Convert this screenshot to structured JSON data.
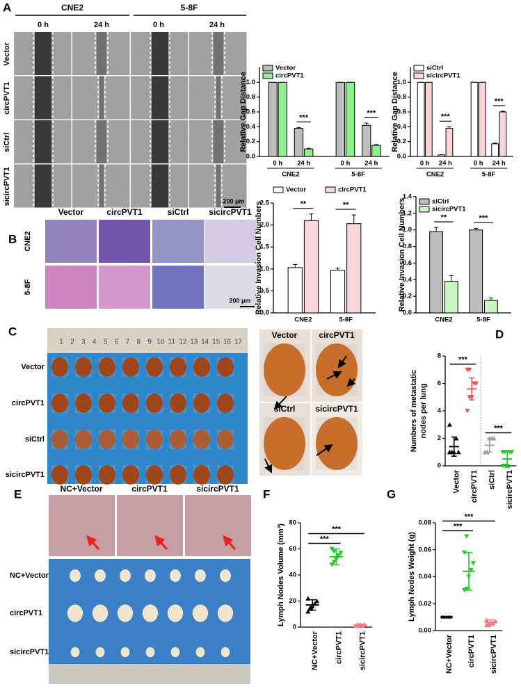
{
  "figure": {
    "panel_labels": [
      "A",
      "B",
      "C",
      "D",
      "E",
      "F",
      "G"
    ],
    "A": {
      "cell_lines": [
        "CNE2",
        "5-8F"
      ],
      "times": [
        "0 h",
        "24 h",
        "0 h",
        "24 h"
      ],
      "rows": [
        "Vector",
        "circPVT1",
        "siCtrl",
        "sicircPVT1"
      ],
      "scale": "200 μm"
    },
    "B": {
      "columns": [
        "Vector",
        "circPVT1",
        "siCtrl",
        "sicircPVT1"
      ],
      "rows": [
        "CNE2",
        "5-8F"
      ],
      "scale": "200 μm"
    },
    "C": {
      "ruler": [
        1,
        2,
        3,
        4,
        5,
        6,
        7,
        8,
        9,
        10,
        11,
        12,
        13,
        14,
        15,
        16,
        17
      ],
      "rows": [
        "Vector",
        "circPVT1",
        "siCtrl",
        "sicircPVT1"
      ],
      "zoom_labels": [
        "Vector",
        "circPVT1",
        "siCtrl",
        "sicircPVT1"
      ]
    },
    "E": {
      "columns": [
        "NC+Vector",
        "circPVT1",
        "sicircPVT1"
      ],
      "rows": [
        "NC+Vector",
        "circPVT1",
        "sicircPVT1"
      ]
    }
  },
  "chart_data": [
    {
      "type": "bar",
      "ylabel": "Relative Gap Distance",
      "groups": [
        "CNE2",
        "5-8F"
      ],
      "categories": [
        "0 h",
        "24 h",
        "0 h",
        "24 h"
      ],
      "series": [
        {
          "name": "Vector",
          "color": "#bdbdbd",
          "values": [
            1,
            0.38,
            1,
            0.42
          ],
          "errors": [
            0,
            0.01,
            0,
            0.03
          ]
        },
        {
          "name": "circPVT1",
          "color": "#90ee90",
          "values": [
            1,
            0.1,
            1,
            0.15
          ],
          "errors": [
            0,
            0.01,
            0,
            0.01
          ]
        }
      ],
      "sig": [
        null,
        "***",
        null,
        "***"
      ],
      "legend": "top-left",
      "ylim": [
        0,
        1.2
      ],
      "yticks": [
        {
          "value": 0,
          "label": "0.0"
        },
        0.2,
        0.4,
        0.6,
        0.8,
        {
          "value": 1,
          "label": "1.0"
        }
      ]
    },
    {
      "type": "bar",
      "ylabel": "Relative Gap Distance",
      "groups": [
        "CNE2",
        "5-8F"
      ],
      "categories": [
        "0 h",
        "24 h",
        "0 h",
        "24 h"
      ],
      "series": [
        {
          "name": "siCtrl",
          "color": "#ffffff",
          "values": [
            1,
            0.02,
            1,
            0.17
          ],
          "errors": [
            0,
            0.005,
            0,
            0.01
          ]
        },
        {
          "name": "sicircPVT1",
          "color": "#f9d5d8",
          "values": [
            1,
            0.38,
            1,
            0.6
          ],
          "errors": [
            0,
            0.02,
            0,
            0.01
          ]
        }
      ],
      "sig": [
        null,
        "***",
        null,
        "***"
      ],
      "legend": "top-left",
      "ylim": [
        0,
        1.2
      ],
      "yticks": [
        {
          "value": 0,
          "label": "0.0"
        },
        0.2,
        0.4,
        0.6,
        0.8,
        {
          "value": 1,
          "label": "1.0"
        }
      ]
    },
    {
      "type": "bar",
      "ylabel": "Relative Invasion Cell Numbers",
      "categories": [
        "CNE2",
        "5-8F"
      ],
      "series": [
        {
          "name": "Vector",
          "color": "#ffffff",
          "values": [
            1.03,
            0.97
          ],
          "errors": [
            0.07,
            0.05
          ]
        },
        {
          "name": "circPVT1",
          "color": "#f9d5d8",
          "values": [
            2.1,
            2.03
          ],
          "errors": [
            0.15,
            0.2
          ]
        }
      ],
      "sig": [
        "**",
        "**"
      ],
      "legend": "top",
      "ylim": [
        0,
        2.5
      ],
      "yticks": [
        {
          "value": 0,
          "label": "0.0"
        },
        0.5,
        {
          "value": 1,
          "label": "1.0"
        },
        1.5,
        {
          "value": 2,
          "label": "2.0"
        },
        2.5
      ]
    },
    {
      "type": "bar",
      "ylabel": "Relative Invasion Cell Numbers",
      "categories": [
        "CNE2",
        "5-8F"
      ],
      "series": [
        {
          "name": "siCtrl",
          "color": "#bdbdbd",
          "values": [
            0.98,
            1.0
          ],
          "errors": [
            0.05,
            0.02
          ]
        },
        {
          "name": "sicircPVT1",
          "color": "#c8f5c0",
          "values": [
            0.38,
            0.15
          ],
          "errors": [
            0.07,
            0.03
          ]
        }
      ],
      "sig": [
        "**",
        "***"
      ],
      "legend": "top-left",
      "ylim": [
        0,
        1.4
      ],
      "yticks": [
        {
          "value": 0,
          "label": "0.0"
        },
        0.2,
        0.4,
        0.6,
        0.8,
        {
          "value": 1,
          "label": "1.0"
        },
        1.2,
        1.4
      ]
    },
    {
      "type": "dot",
      "ylabel": [
        "Numbers of metastatic",
        "nodes per lung"
      ],
      "categories": [
        "Vector",
        "circPVT1",
        "siCtrl",
        "sicircPVT1"
      ],
      "colors": [
        "#000000",
        "#f04e4e",
        "#a0a0a0",
        "#1ec81e"
      ],
      "markers": [
        "triangle",
        "triangle-down",
        "triangle",
        "triangle-down"
      ],
      "points": [
        [
          1,
          1,
          1,
          2,
          1,
          3,
          1
        ],
        [
          4,
          5,
          5,
          6,
          6,
          7,
          7
        ],
        [
          1,
          1,
          2,
          2,
          2,
          1,
          1
        ],
        [
          0,
          0,
          0,
          1,
          1,
          1,
          1
        ]
      ],
      "means": [
        1.4,
        5.6,
        1.5,
        0.5
      ],
      "sd": [
        0.7,
        0.8,
        0.5,
        0.6
      ],
      "sig": [
        {
          "label": "***",
          "between": [
            "Vector",
            "circPVT1"
          ]
        },
        {
          "label": "***",
          "between": [
            "siCtrl",
            "sicircPVT1"
          ]
        }
      ],
      "divider_after": "circPVT1",
      "ylim": [
        0,
        8
      ],
      "yticks": [
        0,
        2,
        4,
        6,
        8
      ]
    },
    {
      "type": "dot",
      "ylabel": "Lymph Nodes Volume (mm³)",
      "categories": [
        "NC+Vector",
        "circPVT1",
        "sicircPVT1"
      ],
      "colors": [
        "#000000",
        "#22cc22",
        "#f08080"
      ],
      "markers": [
        "triangle",
        "triangle-down",
        "triangle"
      ],
      "points": [
        [
          12,
          14,
          16,
          18,
          20,
          22,
          15
        ],
        [
          48,
          50,
          52,
          55,
          57,
          60,
          58
        ],
        [
          1,
          1,
          2,
          1,
          2,
          1,
          2
        ]
      ],
      "means": [
        17,
        54,
        1.5
      ],
      "sd": [
        4,
        6,
        0.8
      ],
      "sig": [
        {
          "label": "***",
          "between": [
            "NC+Vector",
            "circPVT1"
          ]
        },
        {
          "label": "***",
          "between": [
            "NC+Vector",
            "sicircPVT1"
          ]
        }
      ],
      "ylim": [
        0,
        80
      ],
      "yticks": [
        0,
        20,
        40,
        60,
        80
      ]
    },
    {
      "type": "dot",
      "ylabel": "Lymph Nodes Weight (g)",
      "categories": [
        "NC+Vector",
        "circPVT1",
        "sicircPVT1"
      ],
      "colors": [
        "#000000",
        "#22cc22",
        "#f08080"
      ],
      "markers": [
        "circle",
        "triangle-down",
        "triangle"
      ],
      "points": [
        [
          0.01,
          0.01,
          0.01,
          0.01,
          0.01,
          0.01,
          0.01
        ],
        [
          0.03,
          0.031,
          0.04,
          0.045,
          0.05,
          0.058,
          0.07
        ],
        [
          0.004,
          0.005,
          0.005,
          0.006,
          0.007,
          0.008,
          0.004
        ]
      ],
      "means": [
        0.01,
        0.044,
        0.006
      ],
      "sd": [
        0.0003,
        0.014,
        0.002
      ],
      "sig": [
        {
          "label": "***",
          "between": [
            "NC+Vector",
            "circPVT1"
          ]
        },
        {
          "label": "***",
          "between": [
            "NC+Vector",
            "sicircPVT1"
          ]
        }
      ],
      "ylim": [
        0,
        0.08
      ],
      "yticks": [
        {
          "value": 0,
          "label": "0.00"
        },
        {
          "value": 0.02,
          "label": "0.02"
        },
        {
          "value": 0.04,
          "label": "0.04"
        },
        {
          "value": 0.06,
          "label": "0.06"
        },
        {
          "value": 0.08,
          "label": "0.08"
        }
      ]
    }
  ]
}
